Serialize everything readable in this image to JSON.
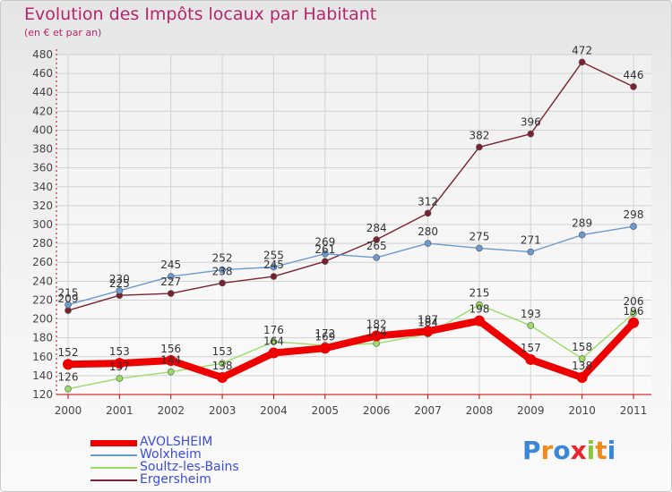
{
  "title": "Evolution des Impôts locaux par Habitant",
  "subtitle": "(en € et par an)",
  "logo": "Proxiti",
  "chart_data": {
    "type": "line",
    "title": "Evolution des Impôts locaux par Habitant",
    "subtitle": "(en € et par an)",
    "xlabel": "",
    "ylabel": "",
    "x": [
      "2000",
      "2001",
      "2002",
      "2003",
      "2004",
      "2005",
      "2006",
      "2007",
      "2008",
      "2009",
      "2010",
      "2011"
    ],
    "ylim": [
      120,
      480
    ],
    "yticks": [
      120,
      140,
      160,
      180,
      200,
      220,
      240,
      260,
      280,
      300,
      320,
      340,
      360,
      380,
      400,
      420,
      440,
      460,
      480
    ],
    "grid": true,
    "legend_position": "bottom-left",
    "series": [
      {
        "name": "AVOLSHEIM",
        "color": "#ee0000",
        "values": [
          152,
          153,
          156,
          138,
          164,
          169,
          182,
          187,
          198,
          157,
          138,
          196
        ]
      },
      {
        "name": "Wolxheim",
        "color": "#6b9ad0",
        "values": [
          215,
          230,
          245,
          252,
          255,
          269,
          265,
          280,
          275,
          271,
          289,
          298
        ]
      },
      {
        "name": "Soultz-les-Bains",
        "color": "#99dd66",
        "values": [
          126,
          137,
          144,
          153,
          176,
          172,
          174,
          184,
          215,
          193,
          158,
          206
        ]
      },
      {
        "name": "Ergersheim",
        "color": "#7a2230",
        "values": [
          209,
          225,
          227,
          238,
          245,
          261,
          284,
          312,
          382,
          396,
          472,
          446
        ]
      }
    ]
  }
}
